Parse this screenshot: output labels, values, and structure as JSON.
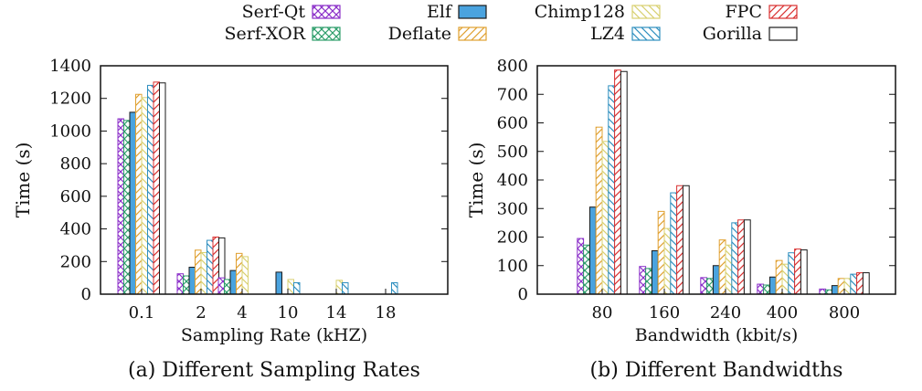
{
  "series_styles": [
    {
      "name": "Serf-Qt",
      "color": "#8b2fc9",
      "pattern": "cross",
      "fill": "#ffffff"
    },
    {
      "name": "Serf-XOR",
      "color": "#2e9e6b",
      "pattern": "grid",
      "fill": "#ffffff"
    },
    {
      "name": "Elf",
      "color": "#1a1a1a",
      "pattern": "solid",
      "fill": "#4aa3df"
    },
    {
      "name": "Deflate",
      "color": "#e0a030",
      "pattern": "fwd",
      "fill": "#ffffff"
    },
    {
      "name": "Chimp128",
      "color": "#d8d070",
      "pattern": "back",
      "fill": "#ffffff"
    },
    {
      "name": "LZ4",
      "color": "#2f8fbf",
      "pattern": "back",
      "fill": "#ffffff"
    },
    {
      "name": "FPC",
      "color": "#d93030",
      "pattern": "fwd",
      "fill": "#ffffff"
    },
    {
      "name": "Gorilla",
      "color": "#1a1a1a",
      "pattern": "none",
      "fill": "#ffffff"
    }
  ],
  "legend": {
    "items": [
      {
        "label": "Serf-Qt",
        "series": 0
      },
      {
        "label": "Serf-XOR",
        "series": 1
      },
      {
        "label": "Elf",
        "series": 2
      },
      {
        "label": "Deflate",
        "series": 3
      },
      {
        "label": "Chimp128",
        "series": 4
      },
      {
        "label": "LZ4",
        "series": 5
      },
      {
        "label": "FPC",
        "series": 6
      },
      {
        "label": "Gorilla",
        "series": 7
      }
    ]
  },
  "chart_data": [
    {
      "type": "bar",
      "title": "(a) Different Sampling Rates",
      "xlabel": "Sampling Rate (kHZ)",
      "ylabel": "Time (s)",
      "ylim": [
        0,
        1400
      ],
      "yticks": [
        0,
        200,
        400,
        600,
        800,
        1000,
        1200,
        1400
      ],
      "categories": [
        "0.1",
        "2",
        "4",
        "10",
        "14",
        "18"
      ],
      "series": [
        {
          "name": "Serf-Qt",
          "values": [
            1075,
            125,
            100,
            0,
            0,
            0
          ]
        },
        {
          "name": "Serf-XOR",
          "values": [
            1065,
            112,
            90,
            0,
            0,
            0
          ]
        },
        {
          "name": "Elf",
          "values": [
            1115,
            165,
            145,
            135,
            0,
            0
          ]
        },
        {
          "name": "Deflate",
          "values": [
            1225,
            270,
            250,
            0,
            0,
            0
          ]
        },
        {
          "name": "Chimp128",
          "values": [
            1205,
            255,
            230,
            90,
            85,
            0
          ]
        },
        {
          "name": "LZ4",
          "values": [
            1280,
            330,
            0,
            70,
            70,
            70
          ]
        },
        {
          "name": "FPC",
          "values": [
            1300,
            350,
            0,
            0,
            0,
            0
          ]
        },
        {
          "name": "Gorilla",
          "values": [
            1295,
            345,
            0,
            0,
            0,
            0
          ]
        }
      ]
    },
    {
      "type": "bar",
      "title": "(b) Different Bandwidths",
      "xlabel": "Bandwidth (kbit/s)",
      "ylabel": "Time (s)",
      "ylim": [
        0,
        800
      ],
      "yticks": [
        0,
        100,
        200,
        300,
        400,
        500,
        600,
        700,
        800
      ],
      "categories": [
        "80",
        "160",
        "240",
        "400",
        "800"
      ],
      "series": [
        {
          "name": "Serf-Qt",
          "values": [
            195,
            97,
            58,
            35,
            18
          ]
        },
        {
          "name": "Serf-XOR",
          "values": [
            172,
            90,
            55,
            32,
            15
          ]
        },
        {
          "name": "Elf",
          "values": [
            305,
            152,
            100,
            60,
            30
          ]
        },
        {
          "name": "Deflate",
          "values": [
            585,
            290,
            190,
            118,
            55
          ]
        },
        {
          "name": "Chimp128",
          "values": [
            535,
            230,
            172,
            105,
            55
          ]
        },
        {
          "name": "LZ4",
          "values": [
            730,
            355,
            250,
            145,
            70
          ]
        },
        {
          "name": "FPC",
          "values": [
            785,
            380,
            260,
            158,
            75
          ]
        },
        {
          "name": "Gorilla",
          "values": [
            780,
            380,
            260,
            155,
            75
          ]
        }
      ]
    }
  ]
}
